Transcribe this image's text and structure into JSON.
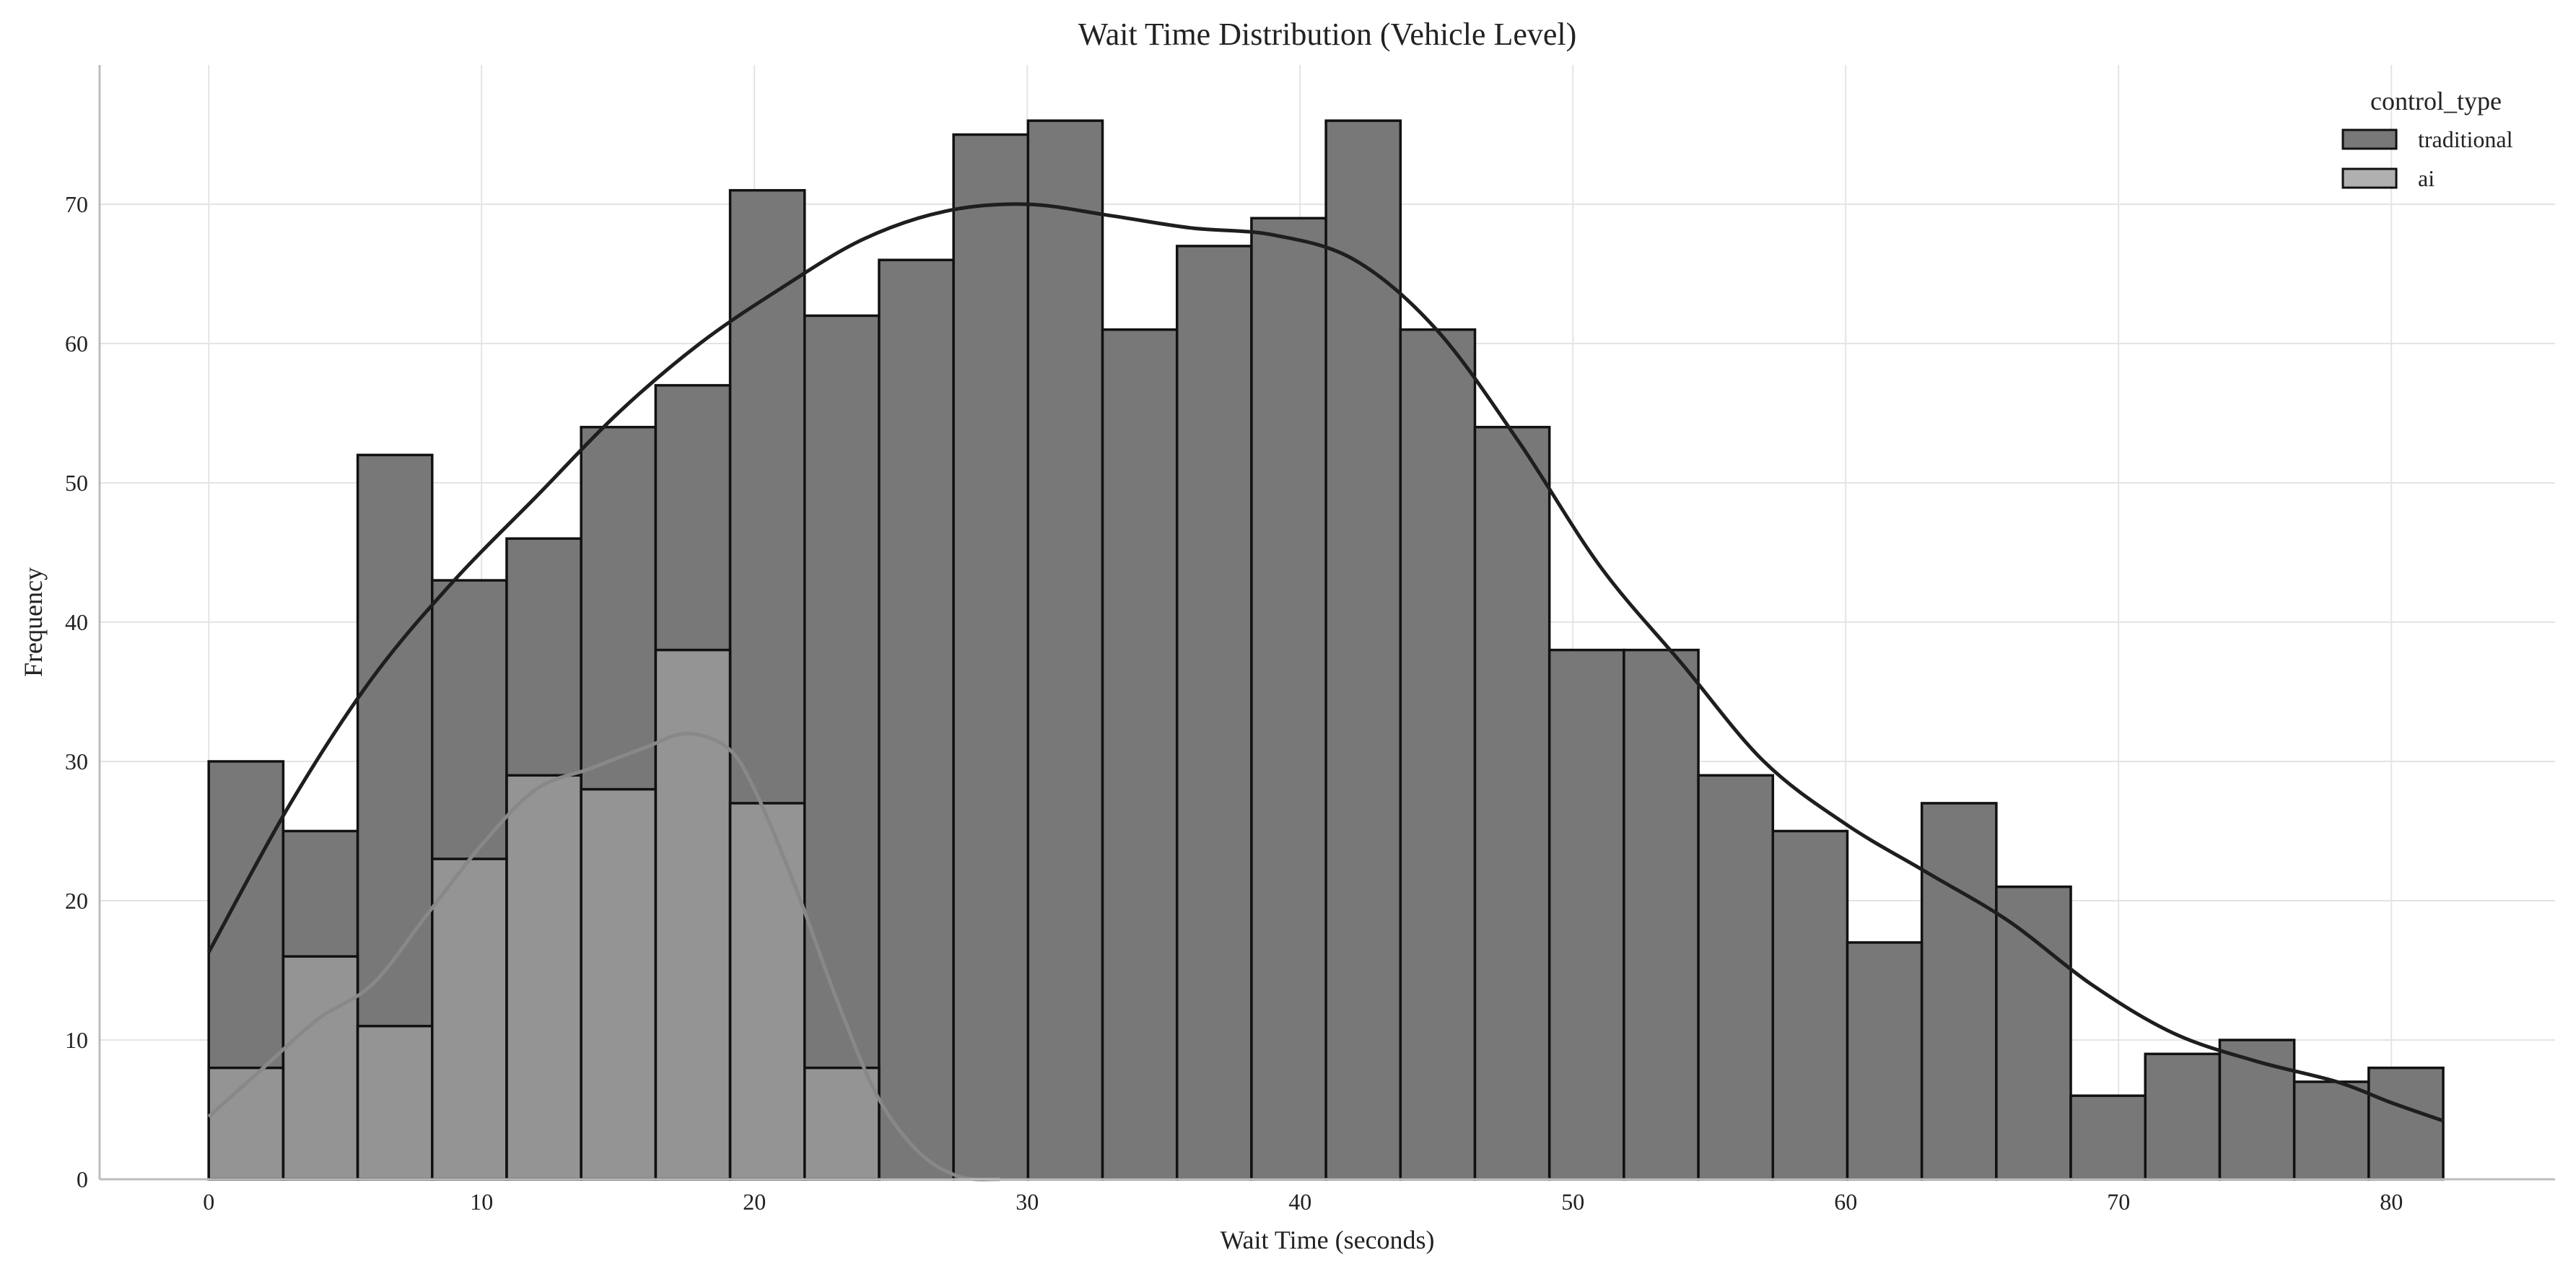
{
  "chart_data": {
    "type": "histogram",
    "title": "Wait Time Distribution (Vehicle Level)",
    "xlabel": "Wait Time (seconds)",
    "ylabel": "Frequency",
    "xlim": [
      -4,
      86
    ],
    "ylim": [
      0,
      80
    ],
    "xticks": [
      0,
      10,
      20,
      30,
      40,
      50,
      60,
      70,
      80
    ],
    "yticks": [
      0,
      10,
      20,
      30,
      40,
      50,
      60,
      70
    ],
    "grid": true,
    "legend": {
      "title": "control_type",
      "placement": "top-right"
    },
    "bin_edges": [
      0,
      2.73,
      5.46,
      8.19,
      10.92,
      13.65,
      16.38,
      19.11,
      21.84,
      24.57,
      27.3,
      30.03,
      32.76,
      35.49,
      38.22,
      40.95,
      43.68,
      46.41,
      49.14,
      51.87,
      54.6,
      57.33,
      60.06,
      62.79,
      65.52,
      68.25,
      70.98,
      73.71,
      76.44,
      79.17,
      81.9
    ],
    "series": [
      {
        "name": "traditional",
        "color": "#787878",
        "kde_color": "#1e1e1e",
        "counts": [
          30,
          25,
          52,
          43,
          46,
          54,
          57,
          71,
          62,
          66,
          75,
          76,
          61,
          67,
          69,
          76,
          61,
          54,
          38,
          38,
          29,
          25,
          17,
          27,
          21,
          6,
          9,
          10,
          7,
          8
        ],
        "kde": [
          [
            0,
            16.3
          ],
          [
            3,
            27
          ],
          [
            6,
            36
          ],
          [
            9,
            43
          ],
          [
            12,
            49
          ],
          [
            15,
            55
          ],
          [
            18,
            60
          ],
          [
            21,
            64
          ],
          [
            24,
            67.5
          ],
          [
            27,
            69.5
          ],
          [
            30,
            70
          ],
          [
            33,
            69.2
          ],
          [
            36,
            68.3
          ],
          [
            39,
            67.8
          ],
          [
            42,
            66
          ],
          [
            45,
            61
          ],
          [
            48,
            53
          ],
          [
            51,
            44
          ],
          [
            54,
            37
          ],
          [
            57,
            30
          ],
          [
            60,
            25.5
          ],
          [
            63,
            22
          ],
          [
            66,
            18.5
          ],
          [
            69,
            14
          ],
          [
            72,
            10.5
          ],
          [
            75,
            8.5
          ],
          [
            78,
            7
          ],
          [
            80,
            5.5
          ],
          [
            81.9,
            4.2
          ]
        ]
      },
      {
        "name": "ai",
        "color": "#b0b0b0",
        "kde_color": "#888888",
        "counts": [
          8,
          16,
          11,
          23,
          29,
          28,
          38,
          27,
          8,
          0,
          0,
          0,
          0,
          0,
          0,
          0,
          0,
          0,
          0,
          0,
          0,
          0,
          0,
          0,
          0,
          0,
          0,
          0,
          0,
          0
        ],
        "kde": [
          [
            0,
            4.5
          ],
          [
            2,
            8
          ],
          [
            4,
            11.5
          ],
          [
            6,
            14
          ],
          [
            8,
            19
          ],
          [
            10,
            24
          ],
          [
            12,
            28
          ],
          [
            14,
            29.5
          ],
          [
            16,
            31
          ],
          [
            17.5,
            32
          ],
          [
            19,
            31
          ],
          [
            20,
            28
          ],
          [
            21.5,
            21
          ],
          [
            23,
            13
          ],
          [
            24.5,
            6
          ],
          [
            26,
            2
          ],
          [
            27.5,
            0.2
          ],
          [
            29,
            0
          ]
        ]
      }
    ]
  }
}
